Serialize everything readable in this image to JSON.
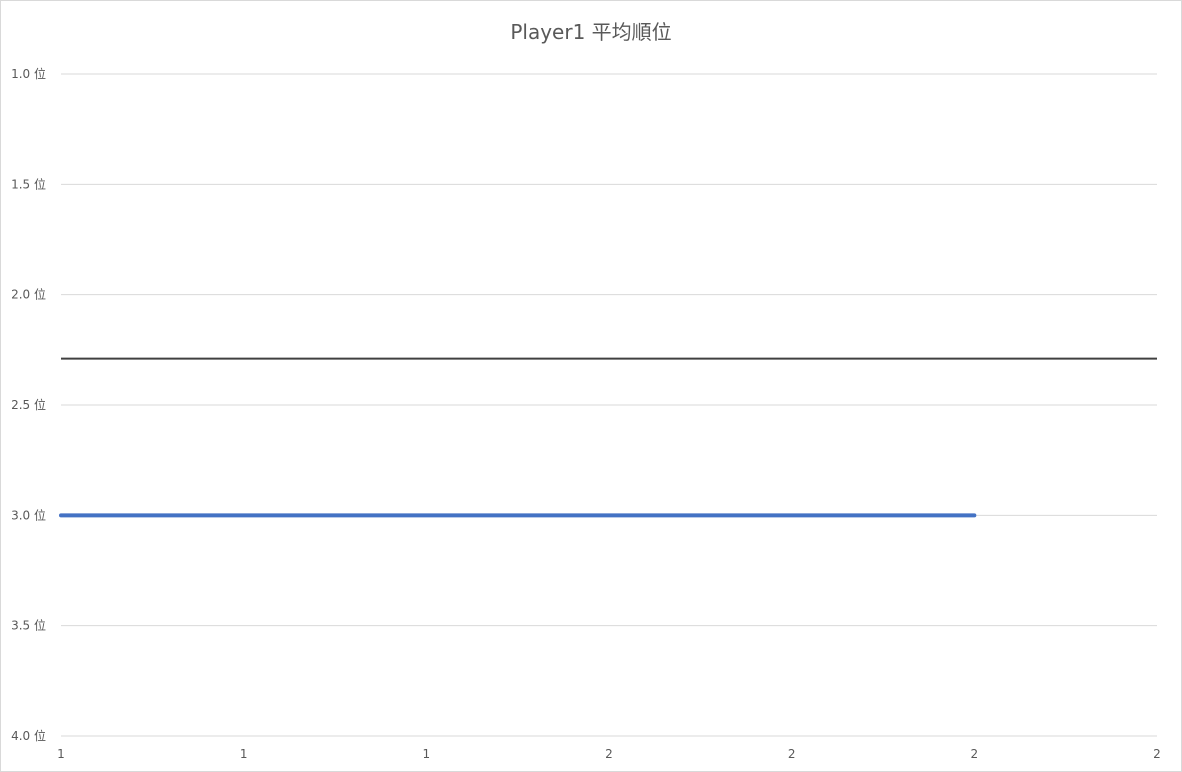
{
  "chart_data": {
    "type": "line",
    "title": "Player1 平均順位",
    "xlabel": "",
    "ylabel": "",
    "y_axis": {
      "ticks": [
        "1.0 位",
        "1.5 位",
        "2.0 位",
        "2.5 位",
        "3.0 位",
        "3.5 位",
        "4.0 位"
      ],
      "tick_values": [
        1.0,
        1.5,
        2.0,
        2.5,
        3.0,
        3.5,
        4.0
      ],
      "ylim": [
        1.0,
        4.0
      ],
      "reversed": true
    },
    "x_axis": {
      "ticks": [
        "1",
        "1",
        "1",
        "2",
        "2",
        "2",
        "2"
      ],
      "xlim": [
        1,
        2.2
      ]
    },
    "grid": true,
    "series": [
      {
        "x": [
          1,
          2
        ],
        "values": [
          3.0,
          3.0
        ],
        "color": "#4472c4"
      }
    ],
    "reference_lines": [
      {
        "value": 2.29,
        "color": "#404040"
      }
    ],
    "colors": {
      "grid": "#d9d9d9",
      "text": "#595959",
      "series": "#4472c4",
      "reference": "#404040"
    }
  }
}
